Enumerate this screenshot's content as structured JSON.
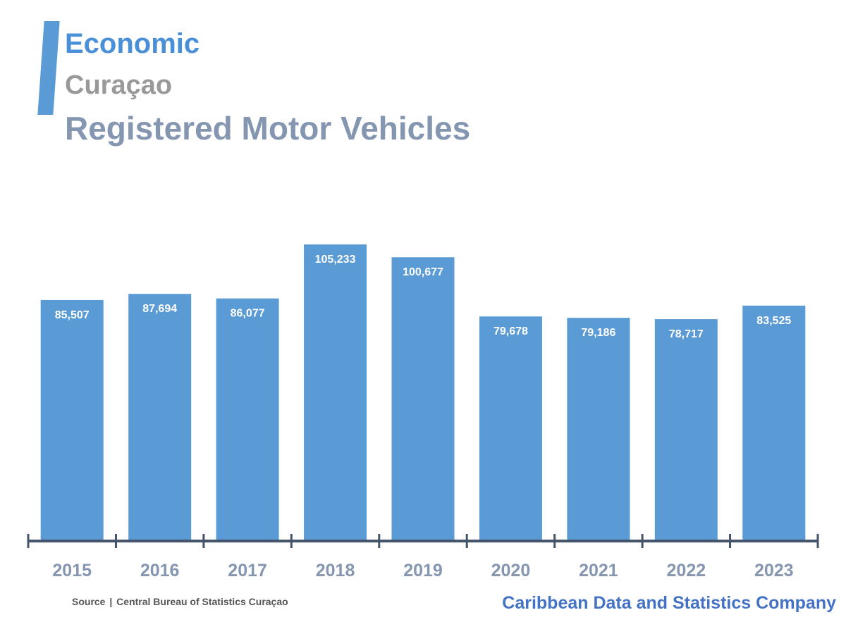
{
  "header": {
    "category": "Economic",
    "region": "Curaçao",
    "title": "Registered Motor Vehicles"
  },
  "footer": {
    "source_label": "Source",
    "source_separator": "|",
    "source_text": "Central Bureau of Statistics Curaçao",
    "brand": "Caribbean Data and Statistics Company"
  },
  "colors": {
    "accent": "#5b9bd5",
    "bar": "#5b9bd5",
    "category_text": "#4a90d9",
    "region_text": "#999999",
    "title_text": "#8496b0",
    "axis": "#44546a",
    "tick_label": "#8496b0",
    "brand_text": "#4472c4",
    "data_label": "#ffffff"
  },
  "chart_data": {
    "type": "bar",
    "categories": [
      "2015",
      "2016",
      "2017",
      "2018",
      "2019",
      "2020",
      "2021",
      "2022",
      "2023"
    ],
    "values": [
      85507,
      87694,
      86077,
      105233,
      100677,
      79678,
      79186,
      78717,
      83525
    ],
    "data_labels": [
      "85,507",
      "87,694",
      "86,077",
      "105,233",
      "100,677",
      "79,678",
      "79,186",
      "78,717",
      "83,525"
    ],
    "title": "Registered Motor Vehicles",
    "xlabel": "",
    "ylabel": "",
    "ylim": [
      0,
      105233
    ],
    "grid": false,
    "legend": "none"
  }
}
